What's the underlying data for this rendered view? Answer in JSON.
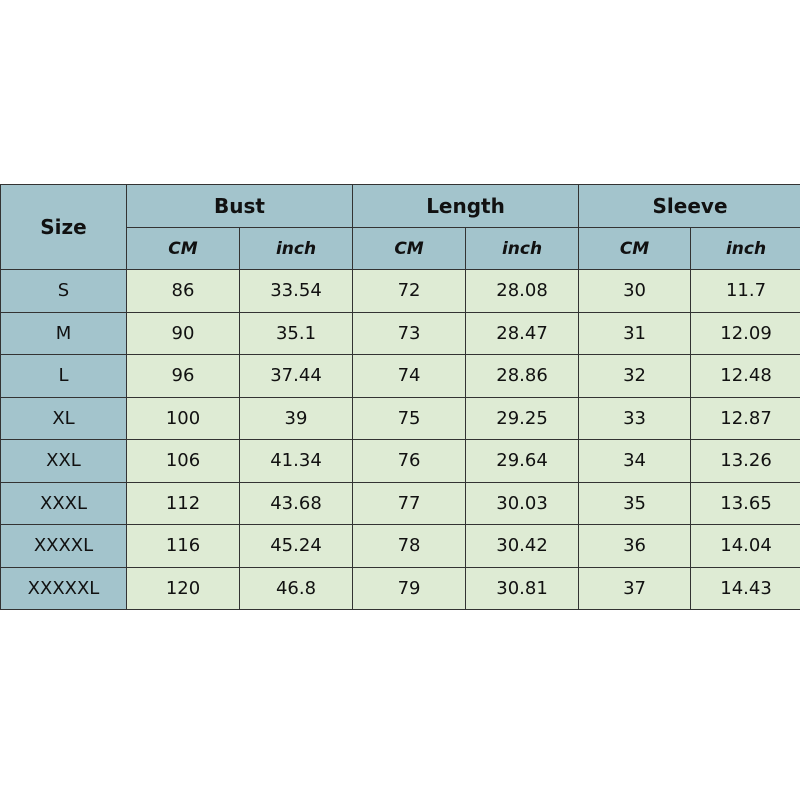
{
  "headers": {
    "size": "Size",
    "groups": [
      "Bust",
      "Length",
      "Sleeve"
    ],
    "units": [
      "CM",
      "inch",
      "CM",
      "inch",
      "CM",
      "inch"
    ]
  },
  "colors": {
    "header": "#a3c4cc",
    "cell": "#deebd4"
  },
  "rows": [
    [
      "S",
      "86",
      "33.54",
      "72",
      "28.08",
      "30",
      "11.7"
    ],
    [
      "M",
      "90",
      "35.1",
      "73",
      "28.47",
      "31",
      "12.09"
    ],
    [
      "L",
      "96",
      "37.44",
      "74",
      "28.86",
      "32",
      "12.48"
    ],
    [
      "XL",
      "100",
      "39",
      "75",
      "29.25",
      "33",
      "12.87"
    ],
    [
      "XXL",
      "106",
      "41.34",
      "76",
      "29.64",
      "34",
      "13.26"
    ],
    [
      "XXXL",
      "112",
      "43.68",
      "77",
      "30.03",
      "35",
      "13.65"
    ],
    [
      "XXXXL",
      "116",
      "45.24",
      "78",
      "30.42",
      "36",
      "14.04"
    ],
    [
      "XXXXXL",
      "120",
      "46.8",
      "79",
      "30.81",
      "37",
      "14.43"
    ]
  ]
}
